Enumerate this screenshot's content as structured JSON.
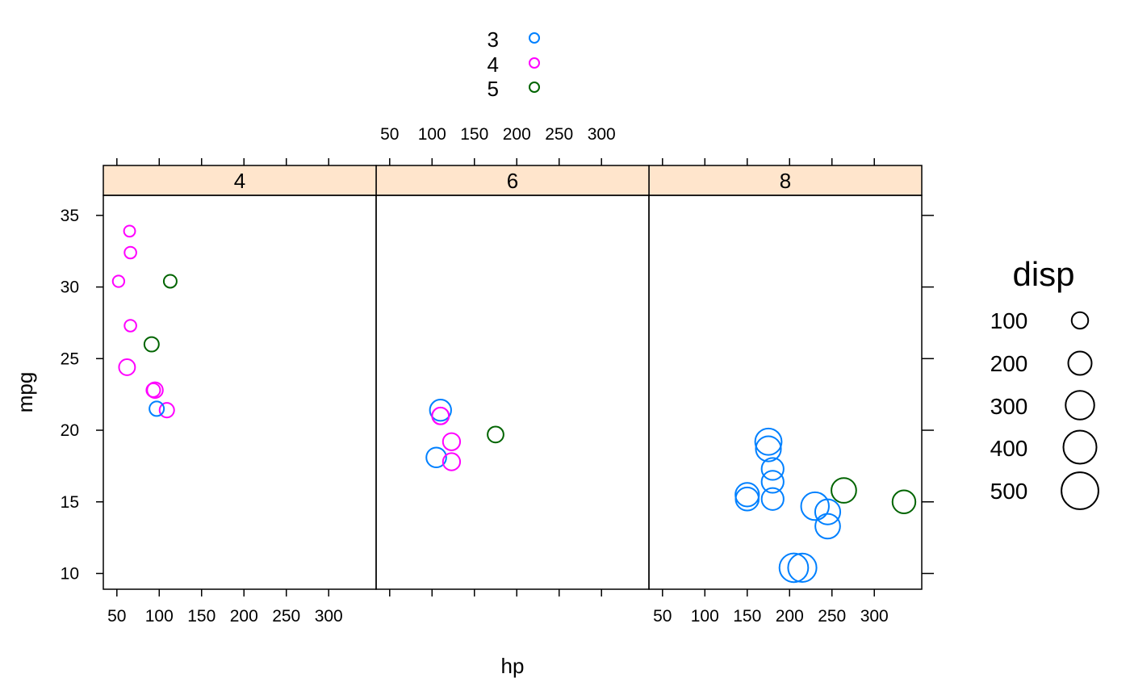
{
  "chart_data": {
    "type": "scatter",
    "xlabel": "hp",
    "ylabel": "mpg",
    "xlim": [
      34,
      356
    ],
    "ylim": [
      8.9,
      36.4
    ],
    "x_ticks": [
      50,
      100,
      150,
      200,
      250,
      300
    ],
    "y_ticks": [
      10,
      15,
      20,
      25,
      30,
      35
    ],
    "panels": [
      {
        "label": "4"
      },
      {
        "label": "6"
      },
      {
        "label": "8"
      }
    ],
    "group_legend": {
      "placement": "top",
      "entries": [
        {
          "label": "3",
          "color": "#0080ff"
        },
        {
          "label": "4",
          "color": "#ff00ff"
        },
        {
          "label": "5",
          "color": "#006400"
        }
      ]
    },
    "size_legend": {
      "title": "disp",
      "placement": "right",
      "entries": [
        {
          "label": "100",
          "value": 100
        },
        {
          "label": "200",
          "value": 200
        },
        {
          "label": "300",
          "value": 300
        },
        {
          "label": "400",
          "value": 400
        },
        {
          "label": "500",
          "value": 500
        }
      ]
    },
    "colors": {
      "strip_fill": "#ffe5cc",
      "3": "#0080ff",
      "4": "#ff00ff",
      "5": "#006400"
    },
    "points": [
      {
        "panel": "4",
        "gear": "4",
        "hp": 65,
        "mpg": 33.9,
        "disp": 71
      },
      {
        "panel": "4",
        "gear": "4",
        "hp": 66,
        "mpg": 32.4,
        "disp": 79
      },
      {
        "panel": "4",
        "gear": "4",
        "hp": 52,
        "mpg": 30.4,
        "disp": 76
      },
      {
        "panel": "4",
        "gear": "4",
        "hp": 66,
        "mpg": 27.3,
        "disp": 79
      },
      {
        "panel": "4",
        "gear": "4",
        "hp": 62,
        "mpg": 24.4,
        "disp": 147
      },
      {
        "panel": "4",
        "gear": "4",
        "hp": 93,
        "mpg": 22.8,
        "disp": 108
      },
      {
        "panel": "4",
        "gear": "4",
        "hp": 95,
        "mpg": 22.8,
        "disp": 141
      },
      {
        "panel": "4",
        "gear": "4",
        "hp": 109,
        "mpg": 21.4,
        "disp": 121
      },
      {
        "panel": "4",
        "gear": "3",
        "hp": 97,
        "mpg": 21.5,
        "disp": 120
      },
      {
        "panel": "4",
        "gear": "5",
        "hp": 91,
        "mpg": 26.0,
        "disp": 120
      },
      {
        "panel": "4",
        "gear": "5",
        "hp": 113,
        "mpg": 30.4,
        "disp": 95
      },
      {
        "panel": "6",
        "gear": "3",
        "hp": 110,
        "mpg": 21.4,
        "disp": 258
      },
      {
        "panel": "6",
        "gear": "3",
        "hp": 105,
        "mpg": 18.1,
        "disp": 225
      },
      {
        "panel": "6",
        "gear": "4",
        "hp": 110,
        "mpg": 21.0,
        "disp": 160
      },
      {
        "panel": "6",
        "gear": "4",
        "hp": 110,
        "mpg": 21.0,
        "disp": 160
      },
      {
        "panel": "6",
        "gear": "4",
        "hp": 123,
        "mpg": 19.2,
        "disp": 168
      },
      {
        "panel": "6",
        "gear": "4",
        "hp": 123,
        "mpg": 17.8,
        "disp": 168
      },
      {
        "panel": "6",
        "gear": "5",
        "hp": 175,
        "mpg": 19.7,
        "disp": 145
      },
      {
        "panel": "8",
        "gear": "3",
        "hp": 175,
        "mpg": 18.7,
        "disp": 360
      },
      {
        "panel": "8",
        "gear": "3",
        "hp": 175,
        "mpg": 19.2,
        "disp": 400
      },
      {
        "panel": "8",
        "gear": "3",
        "hp": 180,
        "mpg": 17.3,
        "disp": 276
      },
      {
        "panel": "8",
        "gear": "3",
        "hp": 180,
        "mpg": 16.4,
        "disp": 276
      },
      {
        "panel": "8",
        "gear": "3",
        "hp": 180,
        "mpg": 15.2,
        "disp": 276
      },
      {
        "panel": "8",
        "gear": "3",
        "hp": 150,
        "mpg": 15.5,
        "disp": 318
      },
      {
        "panel": "8",
        "gear": "3",
        "hp": 150,
        "mpg": 15.2,
        "disp": 304
      },
      {
        "panel": "8",
        "gear": "3",
        "hp": 245,
        "mpg": 14.3,
        "disp": 360
      },
      {
        "panel": "8",
        "gear": "3",
        "hp": 245,
        "mpg": 13.3,
        "disp": 350
      },
      {
        "panel": "8",
        "gear": "3",
        "hp": 230,
        "mpg": 14.7,
        "disp": 440
      },
      {
        "panel": "8",
        "gear": "3",
        "hp": 205,
        "mpg": 10.4,
        "disp": 472
      },
      {
        "panel": "8",
        "gear": "3",
        "hp": 215,
        "mpg": 10.4,
        "disp": 460
      },
      {
        "panel": "8",
        "gear": "5",
        "hp": 264,
        "mpg": 15.8,
        "disp": 351
      },
      {
        "panel": "8",
        "gear": "5",
        "hp": 335,
        "mpg": 15.0,
        "disp": 301
      }
    ]
  }
}
